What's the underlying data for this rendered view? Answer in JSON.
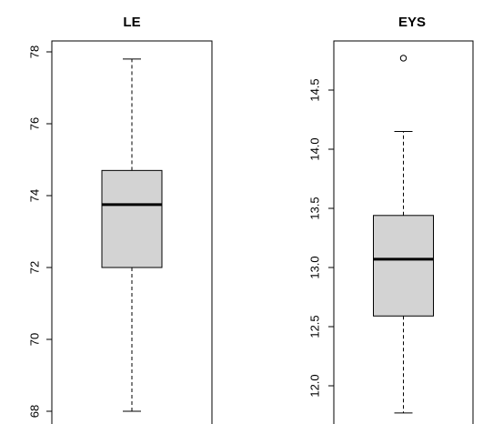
{
  "chart_data": [
    {
      "type": "boxplot",
      "title": "LE",
      "ylim": [
        67.9,
        78.2
      ],
      "yticks": [
        68,
        70,
        72,
        74,
        76,
        78
      ],
      "whisker_low": 68.0,
      "q1": 72.0,
      "median": 73.75,
      "q3": 74.7,
      "whisker_high": 77.8,
      "outliers": []
    },
    {
      "type": "boxplot",
      "title": "EYS",
      "ylim": [
        11.7,
        14.9
      ],
      "yticks": [
        "12.0",
        "12.5",
        "13.0",
        "13.5",
        "14.0",
        "14.5"
      ],
      "whisker_low": 11.77,
      "q1": 12.59,
      "median": 13.07,
      "q3": 13.44,
      "whisker_high": 14.15,
      "outliers": [
        14.77
      ]
    }
  ]
}
